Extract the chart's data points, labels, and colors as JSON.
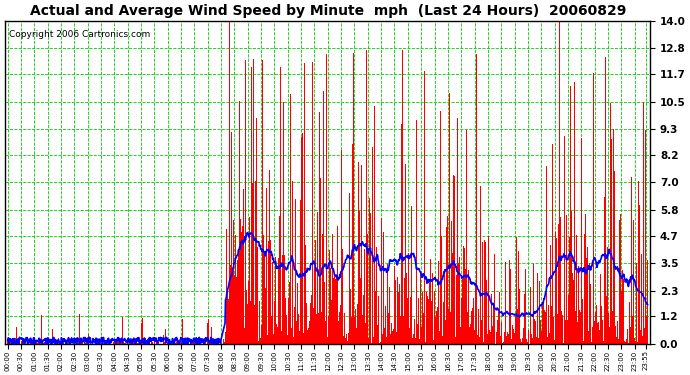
{
  "title": "Actual and Average Wind Speed by Minute  mph  (Last 24 Hours)  20060829",
  "copyright": "Copyright 2006 Cartronics.com",
  "yticks": [
    0.0,
    1.2,
    2.3,
    3.5,
    4.7,
    5.8,
    7.0,
    8.2,
    9.3,
    10.5,
    11.7,
    12.8,
    14.0
  ],
  "ymax": 14.0,
  "ymin": 0.0,
  "bar_color": "#FF0000",
  "line_color": "#0000FF",
  "grid_color": "#00CC00",
  "background_color": "#FFFFFF",
  "title_fontsize": 10,
  "copyright_fontsize": 6.5,
  "xtick_fontsize": 5.0,
  "ytick_fontsize": 7.5,
  "wind_transition_minute": 490,
  "big_spike_minute": 565,
  "big_spike2_minute": 610
}
